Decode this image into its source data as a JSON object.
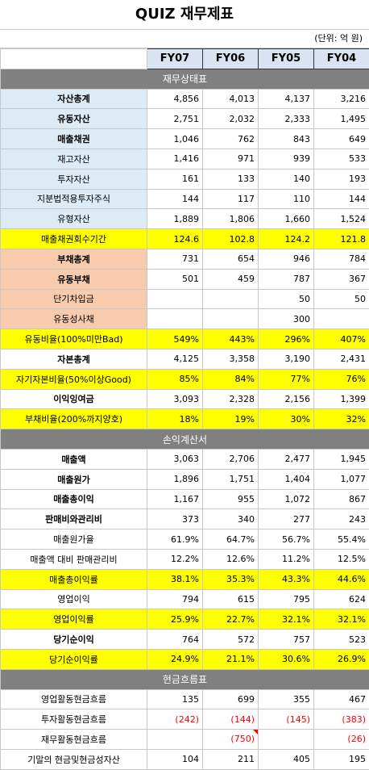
{
  "title": "QUIZ 재무제표",
  "unit": "(단위: 억 원)",
  "columns": [
    "FY07",
    "FY06",
    "FY05",
    "FY04"
  ],
  "sections": {
    "balance": "재무상태표",
    "income": "손익계산서",
    "cashflow": "현금흐름표"
  },
  "rows": {
    "total_assets": {
      "label": "자산총계",
      "values": [
        "4,856",
        "4,013",
        "4,137",
        "3,216"
      ]
    },
    "current_assets": {
      "label": "유동자산",
      "values": [
        "2,751",
        "2,032",
        "2,333",
        "1,495"
      ]
    },
    "receivables": {
      "label": "매출채권",
      "values": [
        "1,046",
        "762",
        "843",
        "649"
      ]
    },
    "inventory": {
      "label": "재고자산",
      "values": [
        "1,416",
        "971",
        "939",
        "533"
      ]
    },
    "investments": {
      "label": "투자자산",
      "values": [
        "161",
        "133",
        "140",
        "193"
      ]
    },
    "equity_method": {
      "label": "지분법적용투자주식",
      "values": [
        "144",
        "117",
        "110",
        "144"
      ]
    },
    "tangible_assets": {
      "label": "유형자산",
      "values": [
        "1,889",
        "1,806",
        "1,660",
        "1,524"
      ]
    },
    "receivable_period": {
      "label": "매출채권회수기간",
      "values": [
        "124.6",
        "102.8",
        "124.2",
        "121.8"
      ]
    },
    "total_liabilities": {
      "label": "부채총계",
      "values": [
        "731",
        "654",
        "946",
        "784"
      ]
    },
    "current_liabilities": {
      "label": "유동부채",
      "values": [
        "501",
        "459",
        "787",
        "367"
      ]
    },
    "short_term_loans": {
      "label": "단기차입금",
      "values": [
        "",
        "",
        "50",
        "50"
      ]
    },
    "current_bonds": {
      "label": "유동성사채",
      "values": [
        "",
        "",
        "300",
        ""
      ]
    },
    "current_ratio": {
      "label": "유동비율(100%미만Bad)",
      "values": [
        "549%",
        "443%",
        "296%",
        "407%"
      ]
    },
    "total_equity": {
      "label": "자본총계",
      "values": [
        "4,125",
        "3,358",
        "3,190",
        "2,431"
      ]
    },
    "equity_ratio": {
      "label": "자기자본비율(50%이상Good)",
      "values": [
        "85%",
        "84%",
        "77%",
        "76%"
      ]
    },
    "retained_earnings": {
      "label": "이익잉여금",
      "values": [
        "3,093",
        "2,328",
        "2,156",
        "1,399"
      ]
    },
    "debt_ratio": {
      "label": "부채비율(200%까지양호)",
      "values": [
        "18%",
        "19%",
        "30%",
        "32%"
      ]
    },
    "revenue": {
      "label": "매출액",
      "values": [
        "3,063",
        "2,706",
        "2,477",
        "1,945"
      ]
    },
    "cogs": {
      "label": "매출원가",
      "values": [
        "1,896",
        "1,751",
        "1,404",
        "1,077"
      ]
    },
    "gross_profit": {
      "label": "매출총이익",
      "values": [
        "1,167",
        "955",
        "1,072",
        "867"
      ]
    },
    "sga": {
      "label": "판매비와관리비",
      "values": [
        "373",
        "340",
        "277",
        "243"
      ]
    },
    "cogs_ratio": {
      "label": "매출원가율",
      "values": [
        "61.9%",
        "64.7%",
        "56.7%",
        "55.4%"
      ]
    },
    "sga_ratio": {
      "label": "매출액 대비 판매관리비",
      "values": [
        "12.2%",
        "12.6%",
        "11.2%",
        "12.5%"
      ]
    },
    "gross_margin": {
      "label": "매출총이익률",
      "values": [
        "38.1%",
        "35.3%",
        "43.3%",
        "44.6%"
      ]
    },
    "operating_income": {
      "label": "영업이익",
      "values": [
        "794",
        "615",
        "795",
        "624"
      ]
    },
    "operating_margin": {
      "label": "영업이익률",
      "values": [
        "25.9%",
        "22.7%",
        "32.1%",
        "32.1%"
      ]
    },
    "net_income": {
      "label": "당기순이익",
      "values": [
        "764",
        "572",
        "757",
        "523"
      ]
    },
    "net_margin": {
      "label": "당기순이익률",
      "values": [
        "24.9%",
        "21.1%",
        "30.6%",
        "26.9%"
      ]
    },
    "operating_cf": {
      "label": "영업활동현금흐름",
      "values": [
        "135",
        "699",
        "355",
        "467"
      ]
    },
    "investing_cf": {
      "label": "투자활동현금흐름",
      "values": [
        "(242)",
        "(144)",
        "(145)",
        "(383)"
      ]
    },
    "financing_cf": {
      "label": "재무활동현금흐름",
      "values": [
        "",
        "(750)",
        "",
        "(26)"
      ]
    },
    "ending_cash": {
      "label": "기말의 현금및현금성자산",
      "values": [
        "104",
        "211",
        "405",
        "195"
      ]
    }
  },
  "colors": {
    "header_fill": "#d9e3f1",
    "section_fill": "#808080",
    "asset_label_fill": "#ddebf7",
    "liability_label_fill": "#f8cbad",
    "highlight_fill": "#ffff00",
    "negative_text": "#ff0000"
  }
}
